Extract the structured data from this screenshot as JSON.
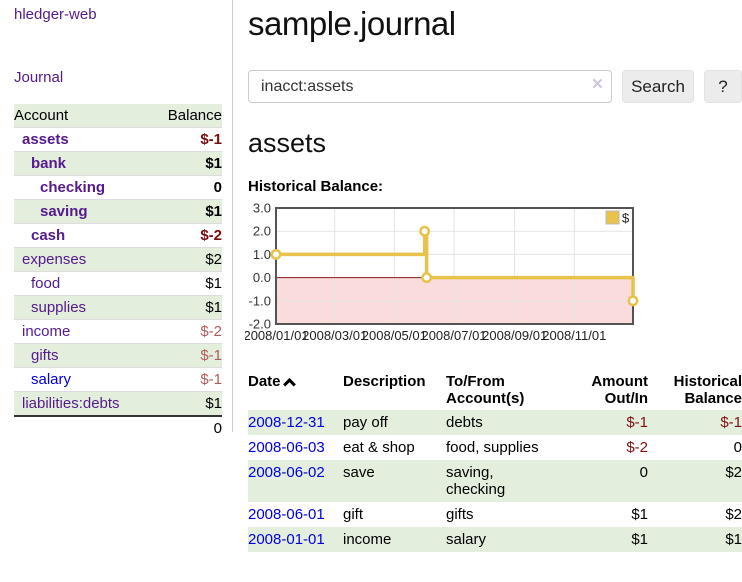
{
  "sidebar": {
    "brand": "hledger-web",
    "nav": {
      "journal": "Journal"
    },
    "table_headers": {
      "account": "Account",
      "balance": "Balance"
    },
    "accounts": [
      {
        "name": "assets",
        "balance": "$-1"
      },
      {
        "name": "bank",
        "balance": "$1"
      },
      {
        "name": "checking",
        "balance": "0"
      },
      {
        "name": "saving",
        "balance": "$1"
      },
      {
        "name": "cash",
        "balance": "$-2"
      },
      {
        "name": "expenses",
        "balance": "$2"
      },
      {
        "name": "food",
        "balance": "$1"
      },
      {
        "name": "supplies",
        "balance": "$1"
      },
      {
        "name": "income",
        "balance": "$-2"
      },
      {
        "name": "gifts",
        "balance": "$-1"
      },
      {
        "name": "salary",
        "balance": "$-1"
      },
      {
        "name": "liabilities:debts",
        "balance": "$1"
      }
    ],
    "total": "0"
  },
  "header": {
    "title": "sample.journal"
  },
  "search": {
    "value": "inacct:assets",
    "clear_label": "×",
    "button": "Search",
    "help_button": "?"
  },
  "account_page": {
    "title": "assets",
    "chart_label": "Historical Balance:"
  },
  "chart_data": {
    "type": "line",
    "title": "Historical Balance:",
    "step": true,
    "x_min": "2008-01-01",
    "x_max": "2008-12-31",
    "ylim": [
      -2,
      3
    ],
    "y_ticks": [
      "3.0",
      "2.0",
      "1.0",
      "0.0",
      "-1.0",
      "-2.0"
    ],
    "x_ticks": [
      {
        "date": "2008-01-01",
        "label": "2008/01/01"
      },
      {
        "date": "2008-03-01",
        "label": "2008/03/01"
      },
      {
        "date": "2008-05-01",
        "label": "2008/05/01"
      },
      {
        "date": "2008-07-01",
        "label": "2008/07/01"
      },
      {
        "date": "2008-09-01",
        "label": "2008/09/01"
      },
      {
        "date": "2008-11-01",
        "label": "2008/11/01"
      }
    ],
    "series": [
      {
        "name": "$",
        "color": "#e8c24a",
        "points": [
          {
            "x": "2008-01-01",
            "y": 1
          },
          {
            "x": "2008-06-01",
            "y": 2
          },
          {
            "x": "2008-06-03",
            "y": 0
          },
          {
            "x": "2008-12-31",
            "y": -1
          }
        ]
      }
    ],
    "legend": {
      "label": "$",
      "position": "top-right"
    },
    "grid": true,
    "negative_region_color": "#fbdcdc",
    "zero_line_color": "#8b1c1c",
    "border_color": "#545454"
  },
  "register": {
    "headers": {
      "date": "Date",
      "description": "Description",
      "tofrom": "To/From Account(s)",
      "amount": "Amount Out/In",
      "historical": "Historical Balance"
    },
    "rows": [
      {
        "date": "2008-12-31",
        "description": "pay off",
        "accounts": "debts",
        "amount": "$-1",
        "historical": "$-1"
      },
      {
        "date": "2008-06-03",
        "description": "eat & shop",
        "accounts": "food, supplies",
        "amount": "$-2",
        "historical": "0"
      },
      {
        "date": "2008-06-02",
        "description": "save",
        "accounts": "saving, checking",
        "amount": "0",
        "historical": "$2"
      },
      {
        "date": "2008-06-01",
        "description": "gift",
        "accounts": "gifts",
        "amount": "$1",
        "historical": "$2"
      },
      {
        "date": "2008-01-01",
        "description": "income",
        "accounts": "salary",
        "amount": "$1",
        "historical": "$1"
      }
    ]
  }
}
